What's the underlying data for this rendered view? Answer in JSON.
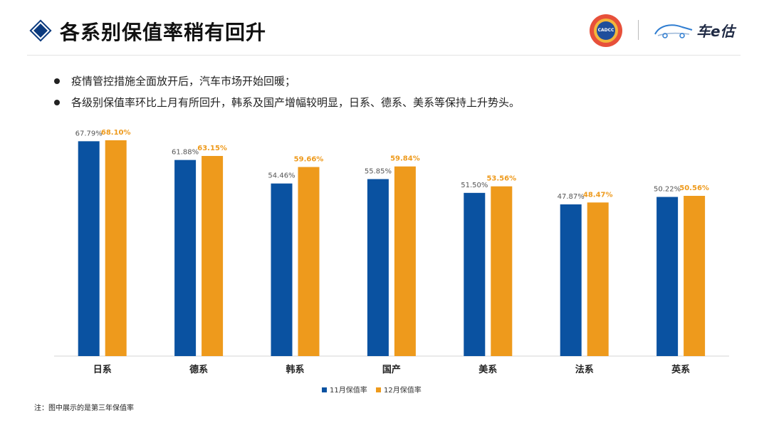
{
  "header": {
    "title": "各系别保值率稍有回升",
    "logo_cadcc_text": "CADCC",
    "logo_brand_text": "车e估"
  },
  "bullets": [
    "疫情管控措施全面放开后，汽车市场开始回暖；",
    "各级别保值率环比上月有所回升，韩系及国产增幅较明显，日系、德系、美系等保持上升势头。"
  ],
  "footnote": "注：图中展示的是第三年保值率",
  "colors": {
    "nov": "#0a52a1",
    "dec": "#ee9a1c",
    "title_accent": "#0b3a7e"
  },
  "chart_data": {
    "type": "bar",
    "title": "",
    "xlabel": "",
    "ylabel": "",
    "ylim": [
      0,
      70
    ],
    "categories": [
      "日系",
      "德系",
      "韩系",
      "国产",
      "美系",
      "法系",
      "英系"
    ],
    "series": [
      {
        "name": "11月保值率",
        "values": [
          67.79,
          61.88,
          54.46,
          55.85,
          51.5,
          47.87,
          50.22
        ],
        "labels": [
          "67.79%",
          "61.88%",
          "54.46%",
          "55.85%",
          "51.50%",
          "47.87%",
          "50.22%"
        ]
      },
      {
        "name": "12月保值率",
        "values": [
          68.1,
          63.15,
          59.66,
          59.84,
          53.56,
          48.47,
          50.56
        ],
        "labels": [
          "68.10%",
          "63.15%",
          "59.66%",
          "59.84%",
          "53.56%",
          "48.47%",
          "50.56%"
        ]
      }
    ],
    "legend_position": "bottom-center"
  }
}
